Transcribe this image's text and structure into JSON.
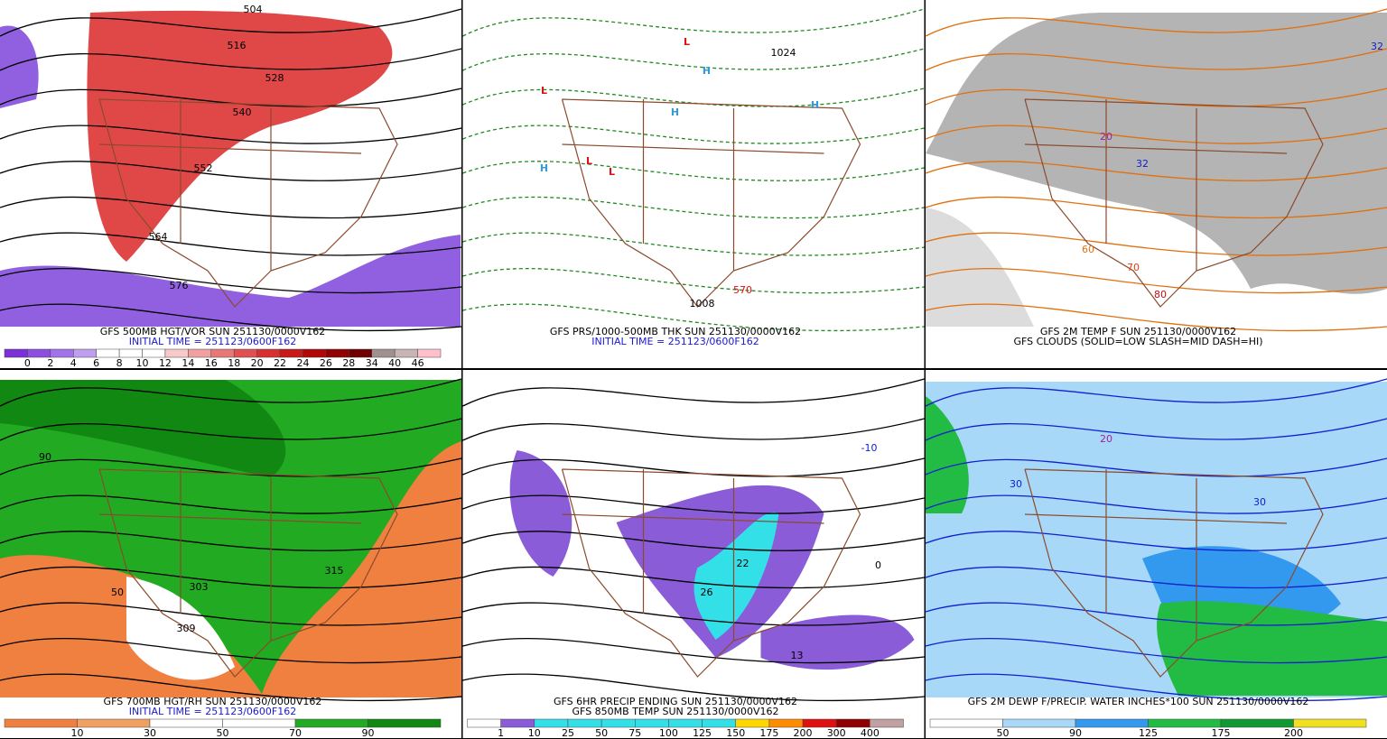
{
  "panels": [
    {
      "caption": [
        "GFS 500MB HGT/VOR SUN 251130/0000V162",
        "INITIAL TIME = 251123/0600F162"
      ],
      "colorbar": {
        "labels": [
          "0",
          "2",
          "4",
          "6",
          "8",
          "10",
          "12",
          "14",
          "16",
          "18",
          "20",
          "22",
          "24",
          "26",
          "28",
          "34",
          "40",
          "46"
        ],
        "colors": [
          "#7b2fd6",
          "#8e4ee0",
          "#a272e8",
          "#bf9ef0",
          "#ffffff",
          "#ffffff",
          "#ffffff",
          "#f7c9c9",
          "#f0a0a0",
          "#e87878",
          "#e05050",
          "#d83030",
          "#c81818",
          "#b00808",
          "#900000",
          "#700000",
          "#a09090",
          "#c8b4b4",
          "#ffc0cb"
        ]
      },
      "labels": [
        {
          "text": "504",
          "color": "#000"
        },
        {
          "text": "516",
          "color": "#000"
        },
        {
          "text": "528",
          "color": "#000"
        },
        {
          "text": "540",
          "color": "#000"
        },
        {
          "text": "552",
          "color": "#000"
        },
        {
          "text": "564",
          "color": "#000"
        },
        {
          "text": "576",
          "color": "#000"
        }
      ]
    },
    {
      "caption": [
        "GFS PRS/1000-500MB THK SUN 251130/0000V162",
        "INITIAL TIME = 251123/0600F162"
      ],
      "labels": [
        {
          "text": "L",
          "color": "#e01010"
        },
        {
          "text": "L",
          "color": "#e01010"
        },
        {
          "text": "L",
          "color": "#e01010"
        },
        {
          "text": "L",
          "color": "#e01010"
        },
        {
          "text": "H",
          "color": "#3399dd"
        },
        {
          "text": "H",
          "color": "#3399dd"
        },
        {
          "text": "H",
          "color": "#3399dd"
        },
        {
          "text": "H",
          "color": "#3399dd"
        },
        {
          "text": "1024",
          "color": "#000"
        },
        {
          "text": "1008",
          "color": "#000"
        },
        {
          "text": "570",
          "color": "#e01010"
        }
      ]
    },
    {
      "caption": [
        "GFS 2M TEMP F SUN 251130/0000V162",
        "GFS CLOUDS (SOLID=LOW SLASH=MID DASH=HI)"
      ],
      "labels": [
        {
          "text": "32",
          "color": "#1020d0"
        },
        {
          "text": "20",
          "color": "#a020a0"
        },
        {
          "text": "32",
          "color": "#1020d0"
        },
        {
          "text": "60",
          "color": "#e07010"
        },
        {
          "text": "70",
          "color": "#e04010"
        },
        {
          "text": "80",
          "color": "#c01010"
        }
      ]
    },
    {
      "caption": [
        "GFS 700MB HGT/RH SUN 251130/0000V162",
        "INITIAL TIME = 251123/0600F162"
      ],
      "colorbar": {
        "labels": [
          "10",
          "30",
          "50",
          "70",
          "90"
        ],
        "colors": [
          "#f08040",
          "#f0a060",
          "#ffffff",
          "#ffffff",
          "#22aa22",
          "#118811"
        ]
      },
      "labels": [
        {
          "text": "303",
          "color": "#000"
        },
        {
          "text": "309",
          "color": "#000"
        },
        {
          "text": "315",
          "color": "#000"
        },
        {
          "text": "50",
          "color": "#000"
        },
        {
          "text": "90",
          "color": "#000"
        }
      ]
    },
    {
      "caption": [
        "GFS 6HR PRECIP ENDING SUN 251130/0000V162",
        "GFS 850MB TEMP SUN 251130/0000V162"
      ],
      "colorbar": {
        "labels": [
          "1",
          "10",
          "25",
          "50",
          "75",
          "100",
          "125",
          "150",
          "175",
          "200",
          "300",
          "400"
        ],
        "colors": [
          "#ffffff",
          "#8a5cd8",
          "#33e0e8",
          "#33e0e8",
          "#33e0e8",
          "#33e0e8",
          "#33e0e8",
          "#33e0e8",
          "#ffd700",
          "#ff8c00",
          "#e01010",
          "#900000",
          "#c0a0a0"
        ]
      },
      "labels": [
        {
          "text": "-10",
          "color": "#1020d0"
        },
        {
          "text": "26",
          "color": "#000"
        },
        {
          "text": "22",
          "color": "#000"
        },
        {
          "text": "13",
          "color": "#000"
        },
        {
          "text": "0",
          "color": "#000"
        }
      ]
    },
    {
      "caption": [
        "GFS 2M DEWP F/PRECIP. WATER INCHES*100 SUN 251130/0000V162"
      ],
      "colorbar": {
        "labels": [
          "50",
          "90",
          "125",
          "175",
          "200"
        ],
        "colors": [
          "#ffffff",
          "#a8d8f8",
          "#3399ee",
          "#22bb44",
          "#119933",
          "#f0e020"
        ]
      },
      "labels": [
        {
          "text": "30",
          "color": "#1020d0"
        },
        {
          "text": "20",
          "color": "#a020a0"
        },
        {
          "text": "30",
          "color": "#1020d0"
        }
      ]
    }
  ]
}
